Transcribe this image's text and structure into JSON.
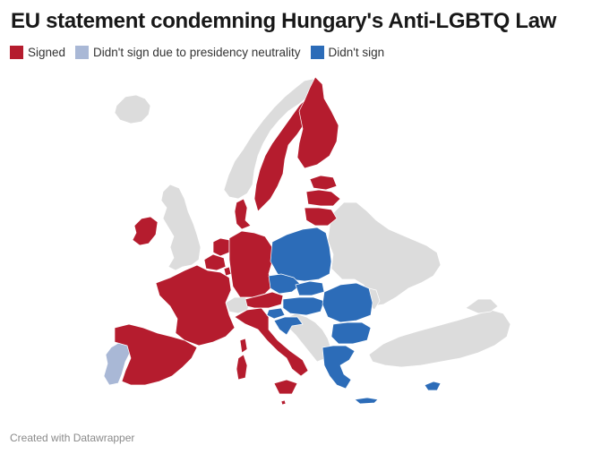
{
  "title": "EU statement condemning Hungary's Anti-LGBTQ Law",
  "legend": [
    {
      "label": "Signed",
      "color": "#b51c2e"
    },
    {
      "label": "Didn't sign due to presidency neutrality",
      "color": "#a9b8d6"
    },
    {
      "label": "Didn't sign",
      "color": "#2c6cb8"
    }
  ],
  "footer": "Created with Datawrapper",
  "colors": {
    "signed": "#b51c2e",
    "presidency": "#a9b8d6",
    "didnt_sign": "#2c6cb8",
    "non_eu": "#dcdcdc"
  }
}
